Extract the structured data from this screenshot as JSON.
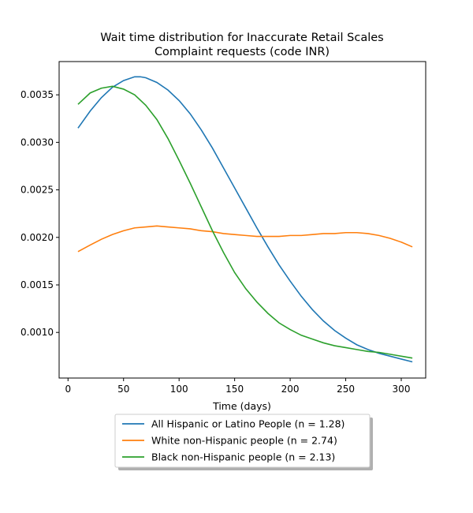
{
  "chart_data": {
    "type": "line",
    "title_line1": "Wait time distribution  for Inaccurate Retail Scales",
    "title_line2": "Complaint  requests (code INR)",
    "xlabel": "Time (days)",
    "ylabel": "",
    "xlim": [
      -8,
      322
    ],
    "ylim": [
      0.00052,
      0.00385
    ],
    "x_ticks": [
      0,
      50,
      100,
      150,
      200,
      250,
      300
    ],
    "y_ticks": [
      0.001,
      0.0015,
      0.002,
      0.0025,
      0.003,
      0.0035
    ],
    "y_tick_labels": [
      "0.0010",
      "0.0015",
      "0.0020",
      "0.0025",
      "0.0030",
      "0.0035"
    ],
    "legend_position": "below plot",
    "grid": false,
    "series": [
      {
        "name": "All Hispanic or Latino People (n = 1.28)",
        "color": "#1f77b4",
        "x": [
          9,
          20,
          30,
          40,
          50,
          60,
          65,
          70,
          80,
          90,
          100,
          110,
          120,
          130,
          140,
          150,
          160,
          170,
          180,
          190,
          200,
          210,
          220,
          230,
          240,
          250,
          260,
          270,
          280,
          290,
          300,
          310
        ],
        "y": [
          0.00315,
          0.00333,
          0.00347,
          0.00358,
          0.00365,
          0.00369,
          0.00369,
          0.00368,
          0.00363,
          0.00355,
          0.00344,
          0.0033,
          0.00313,
          0.00294,
          0.00273,
          0.00252,
          0.00231,
          0.0021,
          0.0019,
          0.00171,
          0.00154,
          0.00138,
          0.00124,
          0.00112,
          0.00102,
          0.00094,
          0.00087,
          0.00082,
          0.00078,
          0.00075,
          0.00072,
          0.00069
        ]
      },
      {
        "name": "White non-Hispanic people (n = 2.74)",
        "color": "#ff7f0e",
        "x": [
          9,
          20,
          30,
          40,
          50,
          60,
          70,
          80,
          90,
          100,
          110,
          120,
          130,
          140,
          150,
          160,
          170,
          180,
          190,
          200,
          210,
          220,
          230,
          240,
          250,
          260,
          270,
          280,
          290,
          300,
          310
        ],
        "y": [
          0.00185,
          0.00192,
          0.00198,
          0.00203,
          0.00207,
          0.0021,
          0.00211,
          0.00212,
          0.00211,
          0.0021,
          0.00209,
          0.00207,
          0.00206,
          0.00204,
          0.00203,
          0.00202,
          0.00201,
          0.00201,
          0.00201,
          0.00202,
          0.00202,
          0.00203,
          0.00204,
          0.00204,
          0.00205,
          0.00205,
          0.00204,
          0.00202,
          0.00199,
          0.00195,
          0.0019
        ]
      },
      {
        "name": "Black non-Hispanic people (n = 2.13)",
        "color": "#2ca02c",
        "x": [
          9,
          20,
          30,
          40,
          50,
          60,
          70,
          80,
          90,
          100,
          110,
          120,
          130,
          140,
          150,
          160,
          170,
          180,
          190,
          200,
          210,
          220,
          230,
          240,
          250,
          260,
          270,
          280,
          290,
          300,
          310
        ],
        "y": [
          0.0034,
          0.00352,
          0.00357,
          0.00359,
          0.00356,
          0.0035,
          0.00339,
          0.00324,
          0.00304,
          0.00281,
          0.00257,
          0.00232,
          0.00207,
          0.00184,
          0.00163,
          0.00146,
          0.00132,
          0.0012,
          0.0011,
          0.00103,
          0.00097,
          0.00093,
          0.00089,
          0.00086,
          0.00084,
          0.00082,
          0.0008,
          0.00079,
          0.00077,
          0.00075,
          0.00073
        ]
      }
    ]
  }
}
